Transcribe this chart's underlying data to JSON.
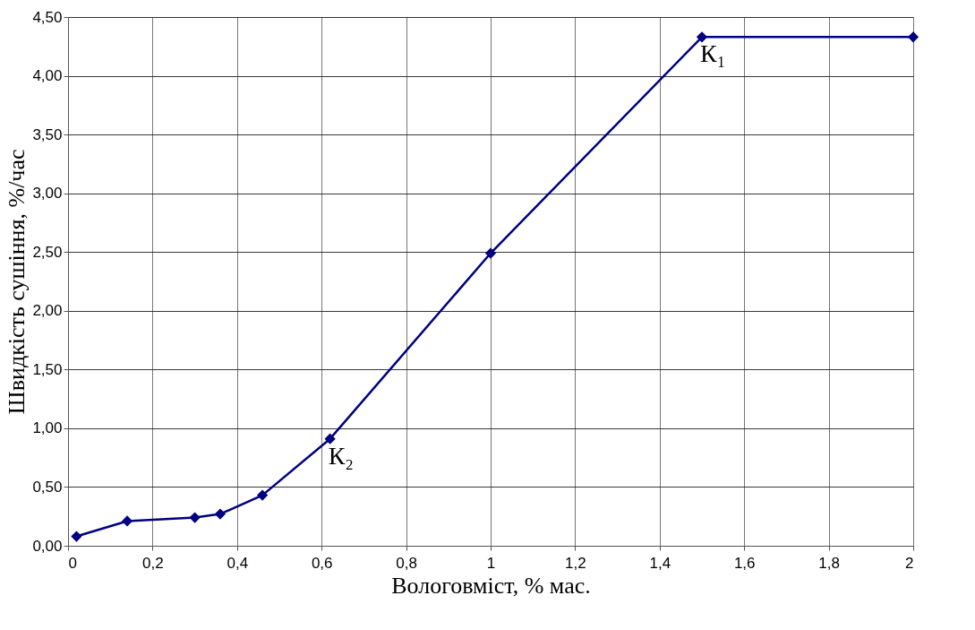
{
  "chart_data": {
    "type": "line",
    "xlabel": "Вологовміст, % мас.",
    "ylabel": "Швидкість сушіння, %/час",
    "x": [
      0.02,
      0.14,
      0.3,
      0.36,
      0.46,
      0.62,
      1.0,
      1.5,
      2.0
    ],
    "series": [
      {
        "color": "#000080",
        "values": [
          0.08,
          0.21,
          0.24,
          0.27,
          0.43,
          0.91,
          2.49,
          4.33,
          4.33
        ]
      }
    ],
    "marker": "diamond",
    "line_style": "solid",
    "grid": true,
    "xlim": [
      0,
      2
    ],
    "ylim": [
      0,
      4.5
    ],
    "xticks": [
      0,
      {
        "value": 0.2,
        "label": "0,2"
      },
      {
        "value": 0.4,
        "label": "0,4"
      },
      {
        "value": 0.6,
        "label": "0,6"
      },
      {
        "value": 0.8,
        "label": "0,8"
      },
      1,
      {
        "value": 1.2,
        "label": "1,2"
      },
      {
        "value": 1.4,
        "label": "1,4"
      },
      {
        "value": 1.6,
        "label": "1,6"
      },
      {
        "value": 1.8,
        "label": "1,8"
      },
      2
    ],
    "yticks": [
      {
        "value": 0,
        "label": "0,00"
      },
      {
        "value": 0.5,
        "label": "0,50"
      },
      {
        "value": 1,
        "label": "1,00"
      },
      {
        "value": 1.5,
        "label": "1,50"
      },
      {
        "value": 2,
        "label": "2,00"
      },
      {
        "value": 2.5,
        "label": "2,50"
      },
      {
        "value": 3,
        "label": "3,00"
      },
      {
        "value": 3.5,
        "label": "3,50"
      },
      {
        "value": 4,
        "label": "4,00"
      },
      {
        "value": 4.5,
        "label": "4,50"
      }
    ],
    "annotations": [
      {
        "text": "К₁",
        "x": 1.5,
        "y": 4.33
      },
      {
        "text": "К₂",
        "x": 0.62,
        "y": 0.91
      }
    ]
  }
}
